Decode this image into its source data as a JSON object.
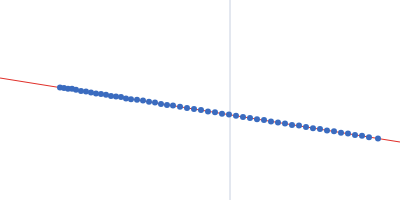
{
  "chart_data": {
    "type": "scatter",
    "xlim": [
      0,
      400
    ],
    "ylim": [
      0,
      200
    ],
    "tick_labels": false,
    "grid": false,
    "series": [
      {
        "type": "line",
        "color": "#e0302a",
        "line_style": "solid",
        "x": [
          0,
          400
        ],
        "values": [
          122,
          58
        ]
      },
      {
        "type": "scatter",
        "color": "#3a6bbf",
        "marker": "circle",
        "x": [
          60,
          64,
          68,
          72,
          76,
          81,
          86,
          91,
          96,
          101,
          106,
          111,
          116,
          121,
          126,
          131,
          137,
          143,
          149,
          155,
          161,
          167,
          173,
          180,
          187,
          194,
          201,
          208,
          215,
          222,
          229,
          236,
          243,
          250,
          257,
          264,
          271,
          278,
          285,
          292,
          299,
          306,
          313,
          320,
          327,
          334,
          341,
          348,
          355,
          362,
          369,
          378
        ],
        "values": [
          112.6,
          111.9,
          111.3,
          111.2,
          110.3,
          109.0,
          108.4,
          107.6,
          106.4,
          105.9,
          105.3,
          104.0,
          103.6,
          102.9,
          101.5,
          100.8,
          100.2,
          99.4,
          98.3,
          97.4,
          96.0,
          95.1,
          94.5,
          93.3,
          92.0,
          91.1,
          89.9,
          88.6,
          87.8,
          86.3,
          85.5,
          84.3,
          82.9,
          82.1,
          80.7,
          79.9,
          78.5,
          77.4,
          76.6,
          75.1,
          74.4,
          72.9,
          71.8,
          70.9,
          69.5,
          68.7,
          67.2,
          66.5,
          65.0,
          64.3,
          62.8,
          61.4
        ]
      }
    ],
    "vline": {
      "x": 230,
      "color": "#c8d0e0"
    }
  }
}
